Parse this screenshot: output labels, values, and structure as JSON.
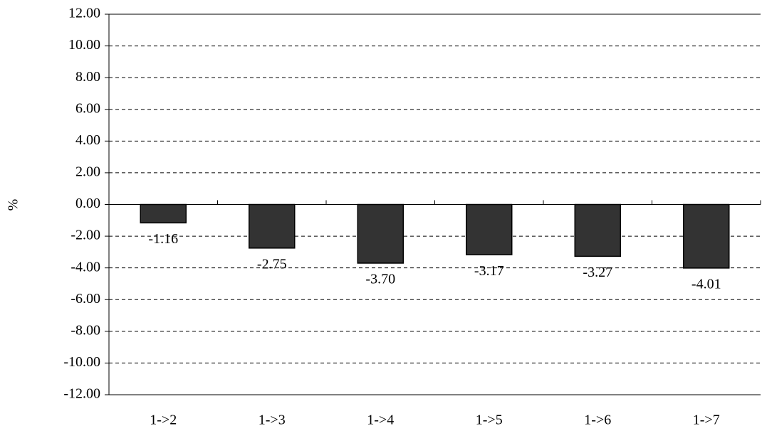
{
  "chart_data": {
    "type": "bar",
    "y_label": "%",
    "categories": [
      "1->2",
      "1->3",
      "1->4",
      "1->5",
      "1->6",
      "1->7"
    ],
    "values": [
      -1.16,
      -2.75,
      -3.7,
      -3.17,
      -3.27,
      -4.01
    ],
    "value_labels": [
      "-1.16",
      "-2.75",
      "-3.70",
      "-3.17",
      "-3.27",
      "-4.01"
    ],
    "color": "#333333",
    "ylim": [
      -12,
      12
    ],
    "yticks": [
      {
        "value": -12,
        "label": "-12.00"
      },
      {
        "value": -10,
        "label": "-10.00"
      },
      {
        "value": -8,
        "label": "-8.00"
      },
      {
        "value": -6,
        "label": "-6.00"
      },
      {
        "value": -4,
        "label": "-4.00"
      },
      {
        "value": -2,
        "label": "-2.00"
      },
      {
        "value": 0,
        "label": "0.00"
      },
      {
        "value": 2,
        "label": "2.00"
      },
      {
        "value": 4,
        "label": "4.00"
      },
      {
        "value": 6,
        "label": "6.00"
      },
      {
        "value": 8,
        "label": "8.00"
      },
      {
        "value": 10,
        "label": "10.00"
      },
      {
        "value": 12,
        "label": "12.00"
      }
    ],
    "grid": true
  }
}
